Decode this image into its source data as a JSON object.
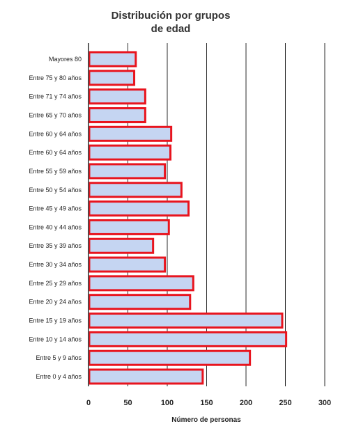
{
  "chart_data": {
    "type": "bar",
    "orientation": "horizontal",
    "title_lines": [
      "Distribución por grupos",
      "de edad"
    ],
    "xlabel": "Número de personas",
    "ylabel": "",
    "xlim": [
      0,
      300
    ],
    "x_ticks": [
      "0",
      "50",
      "100",
      "150",
      "200",
      "250",
      "300"
    ],
    "grid": "vertical lines at major ticks",
    "legend": "none",
    "categories": [
      "Mayores 80",
      "Entre 75 y 80 años",
      "Entre 71 y 74 años",
      "Entre 65 y 70 años",
      "Entre 60 y 64 años",
      "Entre 60 y 64 años",
      "Entre 55 y 59 años",
      "Entre 50 y 54 años",
      "Entre 45 y 49 años",
      "Entre 40 y 44 años",
      "Entre 35 y 39 años",
      "Entre 30 y 34 años",
      "Entre 25 y 29 años",
      "Entre 20 y 24 años",
      "Entre 15 y 19 años",
      "Entre 10 y 14 años",
      "Entre 5 y 9 años",
      "Entre 0 y 4 años"
    ],
    "values": [
      60,
      58,
      72,
      72,
      105,
      104,
      97,
      118,
      127,
      102,
      82,
      97,
      133,
      129,
      246,
      251,
      205,
      145
    ],
    "colors": {
      "bar_fill": "#c5d5f2",
      "bar_stroke": "#e8141e",
      "grid": "#2b2b2b",
      "axis": "#2b2b2b"
    }
  }
}
